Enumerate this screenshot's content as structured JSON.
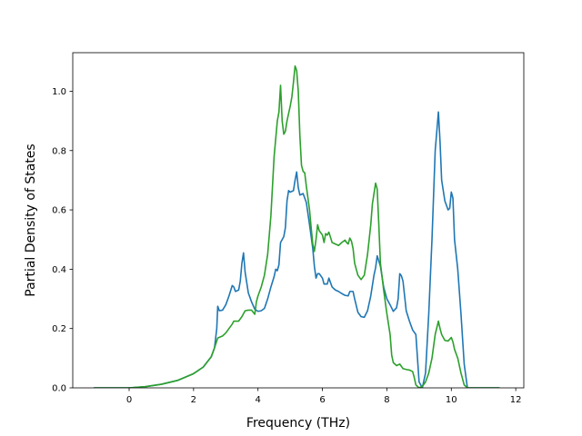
{
  "chart_data": {
    "type": "line",
    "title": "",
    "xlabel": "Frequency (THz)",
    "ylabel": "Partial Density of States",
    "xlim": [
      -1.75,
      12.25
    ],
    "ylim": [
      0.0,
      1.13
    ],
    "xticks": [
      0,
      2,
      4,
      6,
      8,
      10,
      12
    ],
    "xtick_labels": [
      "0",
      "2",
      "4",
      "6",
      "8",
      "10",
      "12"
    ],
    "yticks": [
      0.0,
      0.2,
      0.4,
      0.6,
      0.8,
      1.0
    ],
    "ytick_labels": [
      "0.0",
      "0.2",
      "0.4",
      "0.6",
      "0.8",
      "1.0"
    ],
    "grid": false,
    "legend": false,
    "series": [
      {
        "color": "#1f77b4",
        "points": [
          [
            -1.1,
            0.0
          ],
          [
            0.0,
            0.0
          ],
          [
            0.5,
            0.004
          ],
          [
            1.0,
            0.012
          ],
          [
            1.5,
            0.025
          ],
          [
            2.0,
            0.048
          ],
          [
            2.3,
            0.07
          ],
          [
            2.55,
            0.105
          ],
          [
            2.65,
            0.135
          ],
          [
            2.72,
            0.2
          ],
          [
            2.75,
            0.275
          ],
          [
            2.8,
            0.26
          ],
          [
            2.9,
            0.262
          ],
          [
            3.0,
            0.28
          ],
          [
            3.1,
            0.31
          ],
          [
            3.2,
            0.345
          ],
          [
            3.25,
            0.34
          ],
          [
            3.3,
            0.325
          ],
          [
            3.4,
            0.33
          ],
          [
            3.45,
            0.36
          ],
          [
            3.5,
            0.42
          ],
          [
            3.55,
            0.455
          ],
          [
            3.6,
            0.39
          ],
          [
            3.7,
            0.32
          ],
          [
            3.8,
            0.29
          ],
          [
            3.9,
            0.265
          ],
          [
            4.0,
            0.258
          ],
          [
            4.1,
            0.26
          ],
          [
            4.2,
            0.268
          ],
          [
            4.3,
            0.3
          ],
          [
            4.4,
            0.34
          ],
          [
            4.5,
            0.375
          ],
          [
            4.55,
            0.4
          ],
          [
            4.6,
            0.395
          ],
          [
            4.65,
            0.415
          ],
          [
            4.7,
            0.49
          ],
          [
            4.8,
            0.51
          ],
          [
            4.85,
            0.54
          ],
          [
            4.9,
            0.63
          ],
          [
            4.95,
            0.665
          ],
          [
            5.0,
            0.66
          ],
          [
            5.1,
            0.665
          ],
          [
            5.15,
            0.7
          ],
          [
            5.2,
            0.728
          ],
          [
            5.25,
            0.675
          ],
          [
            5.3,
            0.65
          ],
          [
            5.4,
            0.655
          ],
          [
            5.5,
            0.625
          ],
          [
            5.6,
            0.55
          ],
          [
            5.7,
            0.47
          ],
          [
            5.75,
            0.41
          ],
          [
            5.8,
            0.37
          ],
          [
            5.85,
            0.385
          ],
          [
            5.9,
            0.385
          ],
          [
            6.0,
            0.37
          ],
          [
            6.05,
            0.35
          ],
          [
            6.15,
            0.35
          ],
          [
            6.2,
            0.37
          ],
          [
            6.3,
            0.34
          ],
          [
            6.4,
            0.33
          ],
          [
            6.5,
            0.325
          ],
          [
            6.6,
            0.318
          ],
          [
            6.7,
            0.312
          ],
          [
            6.8,
            0.31
          ],
          [
            6.85,
            0.325
          ],
          [
            6.95,
            0.325
          ],
          [
            7.0,
            0.3
          ],
          [
            7.1,
            0.255
          ],
          [
            7.2,
            0.24
          ],
          [
            7.3,
            0.238
          ],
          [
            7.4,
            0.26
          ],
          [
            7.5,
            0.31
          ],
          [
            7.6,
            0.38
          ],
          [
            7.65,
            0.405
          ],
          [
            7.7,
            0.445
          ],
          [
            7.8,
            0.41
          ],
          [
            7.9,
            0.34
          ],
          [
            8.0,
            0.3
          ],
          [
            8.1,
            0.28
          ],
          [
            8.2,
            0.258
          ],
          [
            8.3,
            0.27
          ],
          [
            8.35,
            0.3
          ],
          [
            8.4,
            0.385
          ],
          [
            8.45,
            0.378
          ],
          [
            8.5,
            0.36
          ],
          [
            8.6,
            0.26
          ],
          [
            8.7,
            0.225
          ],
          [
            8.8,
            0.195
          ],
          [
            8.9,
            0.18
          ],
          [
            8.95,
            0.1
          ],
          [
            9.0,
            0.02
          ],
          [
            9.1,
            0.0
          ],
          [
            9.2,
            0.05
          ],
          [
            9.3,
            0.25
          ],
          [
            9.4,
            0.5
          ],
          [
            9.5,
            0.8
          ],
          [
            9.6,
            0.93
          ],
          [
            9.65,
            0.83
          ],
          [
            9.7,
            0.7
          ],
          [
            9.8,
            0.63
          ],
          [
            9.9,
            0.6
          ],
          [
            9.95,
            0.605
          ],
          [
            10.0,
            0.66
          ],
          [
            10.05,
            0.64
          ],
          [
            10.1,
            0.5
          ],
          [
            10.2,
            0.4
          ],
          [
            10.3,
            0.25
          ],
          [
            10.4,
            0.08
          ],
          [
            10.5,
            0.0
          ],
          [
            11.5,
            0.0
          ]
        ]
      },
      {
        "color": "#2ca02c",
        "points": [
          [
            -1.1,
            0.0
          ],
          [
            0.0,
            0.0
          ],
          [
            0.5,
            0.004
          ],
          [
            1.0,
            0.012
          ],
          [
            1.5,
            0.025
          ],
          [
            2.0,
            0.048
          ],
          [
            2.3,
            0.07
          ],
          [
            2.55,
            0.105
          ],
          [
            2.65,
            0.135
          ],
          [
            2.75,
            0.168
          ],
          [
            2.9,
            0.175
          ],
          [
            3.0,
            0.185
          ],
          [
            3.1,
            0.2
          ],
          [
            3.2,
            0.215
          ],
          [
            3.25,
            0.225
          ],
          [
            3.4,
            0.225
          ],
          [
            3.5,
            0.24
          ],
          [
            3.6,
            0.26
          ],
          [
            3.7,
            0.262
          ],
          [
            3.8,
            0.262
          ],
          [
            3.9,
            0.248
          ],
          [
            3.95,
            0.29
          ],
          [
            4.0,
            0.31
          ],
          [
            4.1,
            0.34
          ],
          [
            4.2,
            0.38
          ],
          [
            4.3,
            0.45
          ],
          [
            4.4,
            0.58
          ],
          [
            4.5,
            0.78
          ],
          [
            4.6,
            0.9
          ],
          [
            4.65,
            0.93
          ],
          [
            4.7,
            1.02
          ],
          [
            4.75,
            0.9
          ],
          [
            4.8,
            0.855
          ],
          [
            4.85,
            0.865
          ],
          [
            4.9,
            0.9
          ],
          [
            5.0,
            0.95
          ],
          [
            5.05,
            0.98
          ],
          [
            5.1,
            1.03
          ],
          [
            5.15,
            1.085
          ],
          [
            5.2,
            1.07
          ],
          [
            5.25,
            1.0
          ],
          [
            5.3,
            0.85
          ],
          [
            5.35,
            0.75
          ],
          [
            5.4,
            0.73
          ],
          [
            5.45,
            0.725
          ],
          [
            5.5,
            0.68
          ],
          [
            5.6,
            0.6
          ],
          [
            5.65,
            0.54
          ],
          [
            5.7,
            0.485
          ],
          [
            5.75,
            0.46
          ],
          [
            5.8,
            0.5
          ],
          [
            5.85,
            0.55
          ],
          [
            5.9,
            0.53
          ],
          [
            6.0,
            0.515
          ],
          [
            6.05,
            0.49
          ],
          [
            6.1,
            0.52
          ],
          [
            6.15,
            0.515
          ],
          [
            6.2,
            0.525
          ],
          [
            6.3,
            0.49
          ],
          [
            6.4,
            0.485
          ],
          [
            6.5,
            0.48
          ],
          [
            6.6,
            0.49
          ],
          [
            6.7,
            0.498
          ],
          [
            6.75,
            0.49
          ],
          [
            6.8,
            0.485
          ],
          [
            6.85,
            0.505
          ],
          [
            6.9,
            0.495
          ],
          [
            6.95,
            0.47
          ],
          [
            7.0,
            0.42
          ],
          [
            7.1,
            0.38
          ],
          [
            7.2,
            0.365
          ],
          [
            7.3,
            0.38
          ],
          [
            7.4,
            0.45
          ],
          [
            7.5,
            0.55
          ],
          [
            7.55,
            0.62
          ],
          [
            7.6,
            0.655
          ],
          [
            7.65,
            0.69
          ],
          [
            7.7,
            0.67
          ],
          [
            7.75,
            0.55
          ],
          [
            7.8,
            0.42
          ],
          [
            7.9,
            0.33
          ],
          [
            8.0,
            0.25
          ],
          [
            8.1,
            0.18
          ],
          [
            8.15,
            0.11
          ],
          [
            8.2,
            0.085
          ],
          [
            8.3,
            0.075
          ],
          [
            8.4,
            0.08
          ],
          [
            8.5,
            0.065
          ],
          [
            8.6,
            0.062
          ],
          [
            8.7,
            0.06
          ],
          [
            8.8,
            0.055
          ],
          [
            8.85,
            0.035
          ],
          [
            8.9,
            0.01
          ],
          [
            9.0,
            0.0
          ],
          [
            9.1,
            0.005
          ],
          [
            9.2,
            0.02
          ],
          [
            9.3,
            0.05
          ],
          [
            9.4,
            0.1
          ],
          [
            9.5,
            0.18
          ],
          [
            9.6,
            0.225
          ],
          [
            9.65,
            0.2
          ],
          [
            9.7,
            0.18
          ],
          [
            9.8,
            0.16
          ],
          [
            9.9,
            0.158
          ],
          [
            10.0,
            0.17
          ],
          [
            10.05,
            0.155
          ],
          [
            10.1,
            0.13
          ],
          [
            10.2,
            0.1
          ],
          [
            10.3,
            0.05
          ],
          [
            10.4,
            0.01
          ],
          [
            10.5,
            0.0
          ],
          [
            11.5,
            0.0
          ]
        ]
      }
    ]
  }
}
